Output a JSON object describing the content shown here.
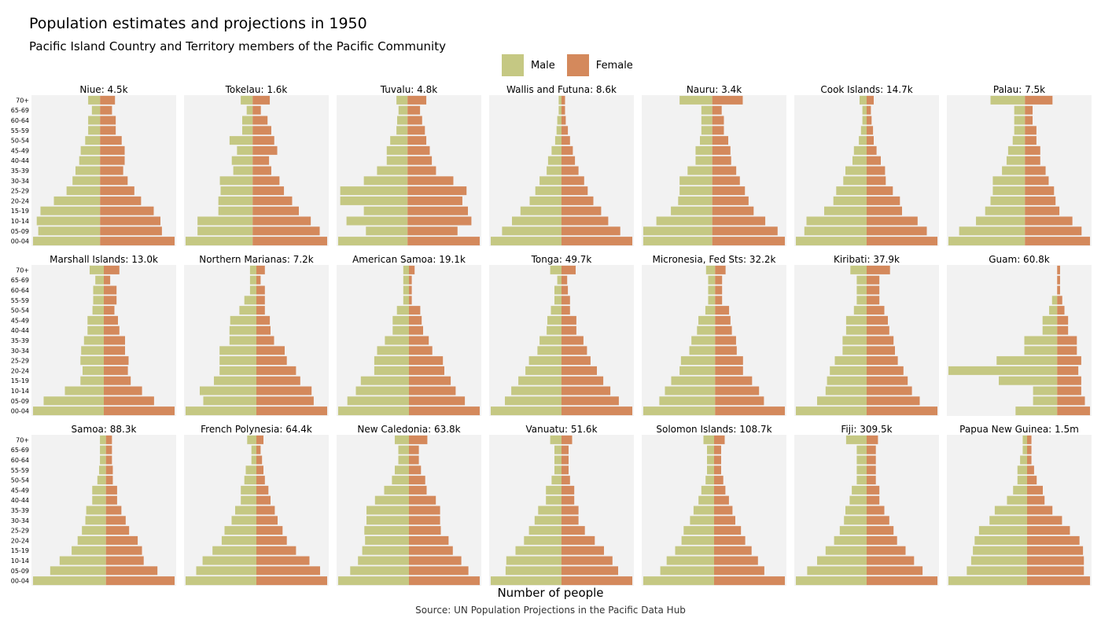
{
  "title": "Population estimates and projections in 1950",
  "subtitle": "Pacific Island Country and Territory members of the Pacific Community",
  "legend": [
    {
      "label": "Male",
      "color": "#c5c883"
    },
    {
      "label": "Female",
      "color": "#d4895c"
    }
  ],
  "xlabel": "Number of people",
  "source": "Source: UN Population Projections in the Pacific Data Hub",
  "chart_data": {
    "type": "bar",
    "orientation": "horizontal",
    "layout": "population-pyramid-small-multiples",
    "age_groups": [
      "70+",
      "65-69",
      "60-64",
      "55-59",
      "50-54",
      "45-49",
      "40-44",
      "35-39",
      "30-34",
      "25-29",
      "20-24",
      "15-19",
      "10-14",
      "05-09",
      "00-04"
    ],
    "values_unit": "percent of peak age-group value per panel (estimated)",
    "panels": [
      {
        "label": "Niue: 4.5k",
        "male": [
          16,
          11,
          16,
          16,
          20,
          26,
          28,
          33,
          37,
          45,
          62,
          80,
          85,
          83,
          90
        ],
        "female": [
          20,
          16,
          21,
          21,
          29,
          33,
          33,
          31,
          37,
          46,
          55,
          72,
          81,
          83,
          100
        ]
      },
      {
        "label": "Tokelau: 1.6k",
        "male": [
          16,
          8,
          14,
          14,
          31,
          21,
          28,
          26,
          44,
          43,
          46,
          46,
          74,
          74,
          90
        ],
        "female": [
          23,
          11,
          20,
          25,
          29,
          33,
          22,
          25,
          36,
          42,
          53,
          62,
          78,
          90,
          100
        ]
      },
      {
        "label": "Tuvalu: 4.8k",
        "male": [
          16,
          13,
          15,
          16,
          25,
          30,
          30,
          44,
          63,
          97,
          97,
          63,
          88,
          60,
          100
        ],
        "female": [
          27,
          18,
          21,
          25,
          27,
          32,
          35,
          41,
          66,
          85,
          79,
          87,
          92,
          72,
          104
        ]
      },
      {
        "label": "Wallis and Futuna: 8.6k",
        "male": [
          4,
          4,
          6,
          7,
          9,
          14,
          19,
          21,
          31,
          37,
          45,
          58,
          70,
          84,
          100
        ],
        "female": [
          5,
          5,
          6,
          9,
          12,
          16,
          19,
          24,
          32,
          37,
          45,
          56,
          66,
          83,
          100
        ]
      },
      {
        "label": "Nauru: 3.4k",
        "male": [
          45,
          15,
          15,
          15,
          17,
          23,
          23,
          34,
          45,
          45,
          47,
          57,
          77,
          95,
          95
        ],
        "female": [
          42,
          13,
          16,
          16,
          22,
          25,
          26,
          33,
          38,
          45,
          50,
          57,
          73,
          90,
          100
        ]
      },
      {
        "label": "Cook Islands: 14.7k",
        "male": [
          10,
          6,
          6,
          8,
          11,
          18,
          20,
          30,
          33,
          43,
          47,
          60,
          85,
          88,
          100
        ],
        "female": [
          10,
          6,
          7,
          9,
          10,
          14,
          20,
          26,
          27,
          37,
          47,
          50,
          72,
          85,
          100
        ]
      },
      {
        "label": "Palau: 7.5k",
        "male": [
          45,
          14,
          14,
          14,
          16,
          22,
          24,
          30,
          42,
          42,
          45,
          52,
          64,
          86,
          100
        ],
        "female": [
          36,
          10,
          10,
          15,
          15,
          20,
          20,
          27,
          31,
          38,
          40,
          45,
          62,
          74,
          85
        ]
      },
      {
        "label": "Marshall Islands: 13.0k",
        "male": [
          20,
          12,
          15,
          15,
          16,
          23,
          23,
          28,
          32,
          33,
          30,
          33,
          55,
          85,
          100
        ],
        "female": [
          22,
          9,
          18,
          18,
          15,
          20,
          22,
          30,
          30,
          35,
          34,
          38,
          54,
          71,
          100
        ]
      },
      {
        "label": "Northern Marianas: 7.2k",
        "male": [
          9,
          9,
          9,
          17,
          24,
          37,
          38,
          38,
          52,
          52,
          52,
          60,
          80,
          75,
          100
        ],
        "female": [
          12,
          6,
          12,
          12,
          12,
          19,
          20,
          25,
          40,
          43,
          56,
          62,
          78,
          81,
          100
        ]
      },
      {
        "label": "American Samoa: 19.1k",
        "male": [
          8,
          8,
          8,
          8,
          17,
          23,
          23,
          34,
          45,
          49,
          49,
          68,
          75,
          87,
          100
        ],
        "female": [
          8,
          4,
          4,
          4,
          16,
          18,
          20,
          28,
          33,
          48,
          50,
          59,
          66,
          79,
          100
        ]
      },
      {
        "label": "Tonga: 49.7k",
        "male": [
          16,
          6,
          10,
          10,
          15,
          20,
          21,
          31,
          34,
          46,
          51,
          61,
          71,
          80,
          100
        ],
        "female": [
          20,
          8,
          9,
          12,
          12,
          21,
          21,
          31,
          36,
          41,
          50,
          59,
          69,
          81,
          100
        ]
      },
      {
        "label": "Micronesia, Fed Sts: 32.2k",
        "male": [
          13,
          10,
          10,
          10,
          14,
          24,
          26,
          34,
          37,
          49,
          51,
          63,
          72,
          80,
          103
        ],
        "female": [
          15,
          10,
          10,
          10,
          20,
          22,
          24,
          30,
          31,
          40,
          40,
          53,
          63,
          70,
          100
        ]
      },
      {
        "label": "Kiribati: 37.9k",
        "male": [
          23,
          14,
          14,
          14,
          18,
          29,
          29,
          34,
          34,
          45,
          52,
          56,
          58,
          70,
          100
        ],
        "female": [
          33,
          18,
          18,
          18,
          25,
          30,
          32,
          38,
          40,
          44,
          52,
          58,
          64,
          75,
          100
        ]
      },
      {
        "label": "Guam: 60.8k",
        "male": [
          0,
          0,
          0,
          7,
          11,
          20,
          20,
          45,
          45,
          83,
          149,
          80,
          33,
          33,
          57
        ],
        "female": [
          4,
          4,
          4,
          7,
          10,
          15,
          15,
          27,
          27,
          33,
          29,
          33,
          33,
          38,
          45
        ]
      },
      {
        "label": "Samoa: 88.3k",
        "male": [
          7,
          7,
          7,
          8,
          10,
          16,
          16,
          23,
          24,
          28,
          33,
          40,
          54,
          65,
          85
        ],
        "female": [
          7,
          7,
          7,
          8,
          8,
          13,
          13,
          18,
          23,
          27,
          37,
          42,
          44,
          60,
          80
        ]
      },
      {
        "label": "French Polynesia: 64.4k",
        "male": [
          13,
          7,
          7,
          15,
          17,
          22,
          22,
          30,
          35,
          45,
          49,
          62,
          76,
          85,
          100
        ],
        "female": [
          10,
          6,
          8,
          10,
          12,
          17,
          20,
          26,
          30,
          37,
          43,
          56,
          75,
          90,
          100
        ]
      },
      {
        "label": "New Caledonia: 63.8k",
        "male": [
          20,
          15,
          15,
          20,
          24,
          35,
          48,
          60,
          60,
          63,
          62,
          66,
          72,
          83,
          100
        ],
        "female": [
          26,
          14,
          14,
          17,
          23,
          25,
          38,
          44,
          44,
          45,
          56,
          62,
          74,
          84,
          100
        ]
      },
      {
        "label": "Vanuatu: 51.6k",
        "male": [
          16,
          10,
          10,
          10,
          14,
          22,
          22,
          33,
          38,
          46,
          53,
          65,
          78,
          79,
          100
        ],
        "female": [
          15,
          10,
          10,
          10,
          12,
          18,
          18,
          24,
          24,
          33,
          47,
          60,
          72,
          80,
          100
        ]
      },
      {
        "label": "Solomon Islands: 108.7k",
        "male": [
          15,
          10,
          10,
          10,
          12,
          18,
          22,
          29,
          34,
          43,
          46,
          55,
          67,
          76,
          100
        ],
        "female": [
          15,
          10,
          10,
          10,
          13,
          16,
          21,
          26,
          30,
          38,
          44,
          53,
          62,
          71,
          100
        ]
      },
      {
        "label": "Fiji: 309.5k",
        "male": [
          29,
          14,
          14,
          14,
          14,
          21,
          24,
          30,
          32,
          38,
          46,
          58,
          70,
          84,
          100
        ],
        "female": [
          16,
          13,
          13,
          13,
          13,
          18,
          18,
          25,
          32,
          38,
          43,
          55,
          67,
          79,
          100
        ]
      },
      {
        "label": "Papua New Guinea: 1.5m",
        "male": [
          5,
          5,
          8,
          11,
          11,
          16,
          23,
          37,
          43,
          55,
          60,
          62,
          64,
          69,
          90
        ],
        "female": [
          5,
          5,
          5,
          8,
          11,
          18,
          20,
          29,
          40,
          49,
          60,
          64,
          65,
          65,
          72
        ]
      }
    ]
  }
}
